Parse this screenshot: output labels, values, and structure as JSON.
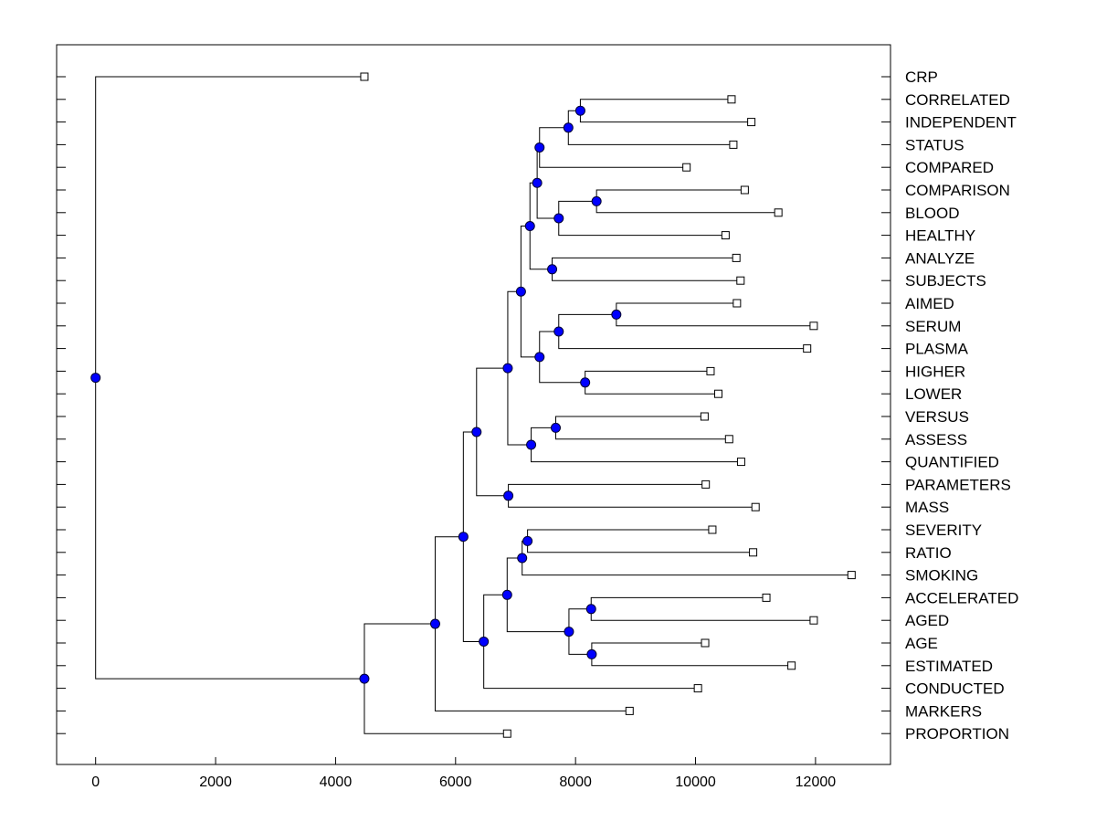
{
  "chart_data": {
    "type": "dendrogram",
    "title": "",
    "xlabel": "",
    "ylabel": "",
    "xlim": [
      -650,
      13250
    ],
    "x_ticks": [
      0,
      2000,
      4000,
      6000,
      8000,
      10000,
      12000
    ],
    "x_tick_labels": [
      "0",
      "2000",
      "4000",
      "6000",
      "8000",
      "10000",
      "12000"
    ],
    "grid": false,
    "colors": {
      "node_fill": "#0000ff",
      "node_stroke": "#000033",
      "line": "#000000",
      "leaf_fill": "#ffffff"
    },
    "leaves": [
      {
        "label": "CRP",
        "value": 4480
      },
      {
        "label": "CORRELATED",
        "value": 10600
      },
      {
        "label": "INDEPENDENT",
        "value": 10930
      },
      {
        "label": "STATUS",
        "value": 10630
      },
      {
        "label": "COMPARED",
        "value": 9850
      },
      {
        "label": "COMPARISON",
        "value": 10820
      },
      {
        "label": "BLOOD",
        "value": 11380
      },
      {
        "label": "HEALTHY",
        "value": 10500
      },
      {
        "label": "ANALYZE",
        "value": 10680
      },
      {
        "label": "SUBJECTS",
        "value": 10750
      },
      {
        "label": "AIMED",
        "value": 10690
      },
      {
        "label": "SERUM",
        "value": 11970
      },
      {
        "label": "PLASMA",
        "value": 11860
      },
      {
        "label": "HIGHER",
        "value": 10250
      },
      {
        "label": "LOWER",
        "value": 10380
      },
      {
        "label": "VERSUS",
        "value": 10150
      },
      {
        "label": "ASSESS",
        "value": 10560
      },
      {
        "label": "QUANTIFIED",
        "value": 10760
      },
      {
        "label": "PARAMETERS",
        "value": 10170
      },
      {
        "label": "MASS",
        "value": 11000
      },
      {
        "label": "SEVERITY",
        "value": 10280
      },
      {
        "label": "RATIO",
        "value": 10960
      },
      {
        "label": "SMOKING",
        "value": 12600
      },
      {
        "label": "ACCELERATED",
        "value": 11180
      },
      {
        "label": "AGED",
        "value": 11970
      },
      {
        "label": "AGE",
        "value": 10160
      },
      {
        "label": "ESTIMATED",
        "value": 11600
      },
      {
        "label": "CONDUCTED",
        "value": 10040
      },
      {
        "label": "MARKERS",
        "value": 8900
      },
      {
        "label": "PROPORTION",
        "value": 6860
      }
    ],
    "merges": [
      {
        "id": "n1",
        "a": 1,
        "b": 2,
        "value": 8080
      },
      {
        "id": "n2",
        "a": "n1",
        "b": 3,
        "value": 7880
      },
      {
        "id": "n3",
        "a": "n2",
        "b": 4,
        "value": 7400
      },
      {
        "id": "n4",
        "a": 5,
        "b": 6,
        "value": 8350
      },
      {
        "id": "n5",
        "a": "n4",
        "b": 7,
        "value": 7720
      },
      {
        "id": "n6",
        "a": "n3",
        "b": "n5",
        "value": 7360
      },
      {
        "id": "n7",
        "a": 8,
        "b": 9,
        "value": 7610
      },
      {
        "id": "n8",
        "a": "n6",
        "b": "n7",
        "value": 7240
      },
      {
        "id": "n9",
        "a": 10,
        "b": 11,
        "value": 8680
      },
      {
        "id": "n10",
        "a": "n9",
        "b": 12,
        "value": 7720
      },
      {
        "id": "n11",
        "a": 13,
        "b": 14,
        "value": 8160
      },
      {
        "id": "n12",
        "a": "n10",
        "b": "n11",
        "value": 7400
      },
      {
        "id": "n13",
        "a": "n8",
        "b": "n12",
        "value": 7090
      },
      {
        "id": "n14",
        "a": 15,
        "b": 16,
        "value": 7670
      },
      {
        "id": "n15",
        "a": "n14",
        "b": 17,
        "value": 7260
      },
      {
        "id": "n16",
        "a": "n13",
        "b": "n15",
        "value": 6870
      },
      {
        "id": "n17",
        "a": 18,
        "b": 19,
        "value": 6880
      },
      {
        "id": "n18",
        "a": "n16",
        "b": "n17",
        "value": 6350
      },
      {
        "id": "n19",
        "a": 20,
        "b": 21,
        "value": 7200
      },
      {
        "id": "n20",
        "a": "n19",
        "b": 22,
        "value": 7110
      },
      {
        "id": "n21",
        "a": 23,
        "b": 24,
        "value": 8260
      },
      {
        "id": "n22",
        "a": 25,
        "b": 26,
        "value": 8270
      },
      {
        "id": "n23",
        "a": "n21",
        "b": "n22",
        "value": 7890
      },
      {
        "id": "n24",
        "a": "n20",
        "b": "n23",
        "value": 6860
      },
      {
        "id": "n25",
        "a": "n24",
        "b": 27,
        "value": 6470
      },
      {
        "id": "n26",
        "a": "n18",
        "b": "n25",
        "value": 6130
      },
      {
        "id": "n27",
        "a": "n26",
        "b": 28,
        "value": 5660
      },
      {
        "id": "n28",
        "a": "n27",
        "b": 29,
        "value": 4480
      },
      {
        "id": "n29",
        "a": 0,
        "b": "n28",
        "value": 0
      }
    ]
  }
}
